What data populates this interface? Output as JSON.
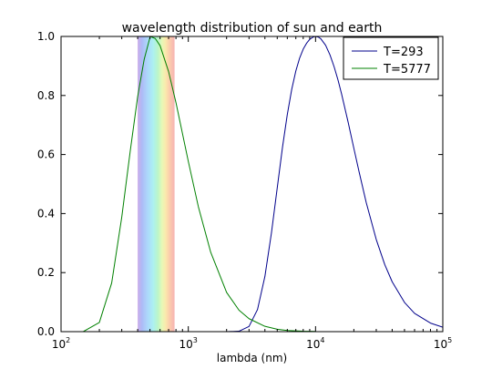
{
  "chart_data": {
    "type": "line",
    "title": "wavelength distribution of sun and earth",
    "xlabel": "lambda (nm)",
    "ylabel": "",
    "x_scale": "log",
    "xlim": [
      100,
      100000
    ],
    "ylim": [
      0.0,
      1.0
    ],
    "x_ticks": [
      {
        "base": "10",
        "exp": "2",
        "value": 100
      },
      {
        "base": "10",
        "exp": "3",
        "value": 1000
      },
      {
        "base": "10",
        "exp": "4",
        "value": 10000
      },
      {
        "base": "10",
        "exp": "5",
        "value": 100000
      }
    ],
    "y_ticks": [
      "0.0",
      "0.2",
      "0.4",
      "0.6",
      "0.8",
      "1.0"
    ],
    "y_tick_values": [
      0.0,
      0.2,
      0.4,
      0.6,
      0.8,
      1.0
    ],
    "visible_spectrum_band_nm": [
      400,
      780
    ],
    "legend": {
      "placement": "top-right"
    },
    "grid": false,
    "series": [
      {
        "name": "T=293",
        "color": "#00008b",
        "x": [
          2000,
          2500,
          3000,
          3500,
          4000,
          4500,
          5000,
          5500,
          6000,
          6500,
          7000,
          7500,
          8000,
          8500,
          9000,
          9500,
          9890,
          10500,
          11000,
          12000,
          13000,
          14000,
          15000,
          16000,
          18000,
          20000,
          22000,
          25000,
          30000,
          35000,
          40000,
          50000,
          60000,
          80000,
          100000
        ],
        "y": [
          0.0,
          0.0014,
          0.0175,
          0.075,
          0.187,
          0.334,
          0.487,
          0.625,
          0.736,
          0.821,
          0.883,
          0.927,
          0.957,
          0.977,
          0.99,
          0.997,
          1.0,
          0.998,
          0.992,
          0.97,
          0.937,
          0.897,
          0.853,
          0.806,
          0.711,
          0.621,
          0.541,
          0.438,
          0.312,
          0.227,
          0.169,
          0.099,
          0.062,
          0.029,
          0.015
        ]
      },
      {
        "name": "T=5777",
        "color": "#008000",
        "x": [
          100,
          150,
          200,
          250,
          300,
          350,
          400,
          450,
          502,
          550,
          600,
          700,
          800,
          1000,
          1200,
          1500,
          2000,
          2500,
          3000,
          4000,
          5000,
          6000,
          8000,
          10000
        ],
        "y": [
          0.0,
          0.0005,
          0.031,
          0.165,
          0.388,
          0.613,
          0.796,
          0.922,
          1.0,
          0.993,
          0.969,
          0.881,
          0.776,
          0.577,
          0.423,
          0.269,
          0.133,
          0.073,
          0.044,
          0.018,
          0.008,
          0.004,
          0.0015,
          0.0006
        ]
      }
    ]
  }
}
